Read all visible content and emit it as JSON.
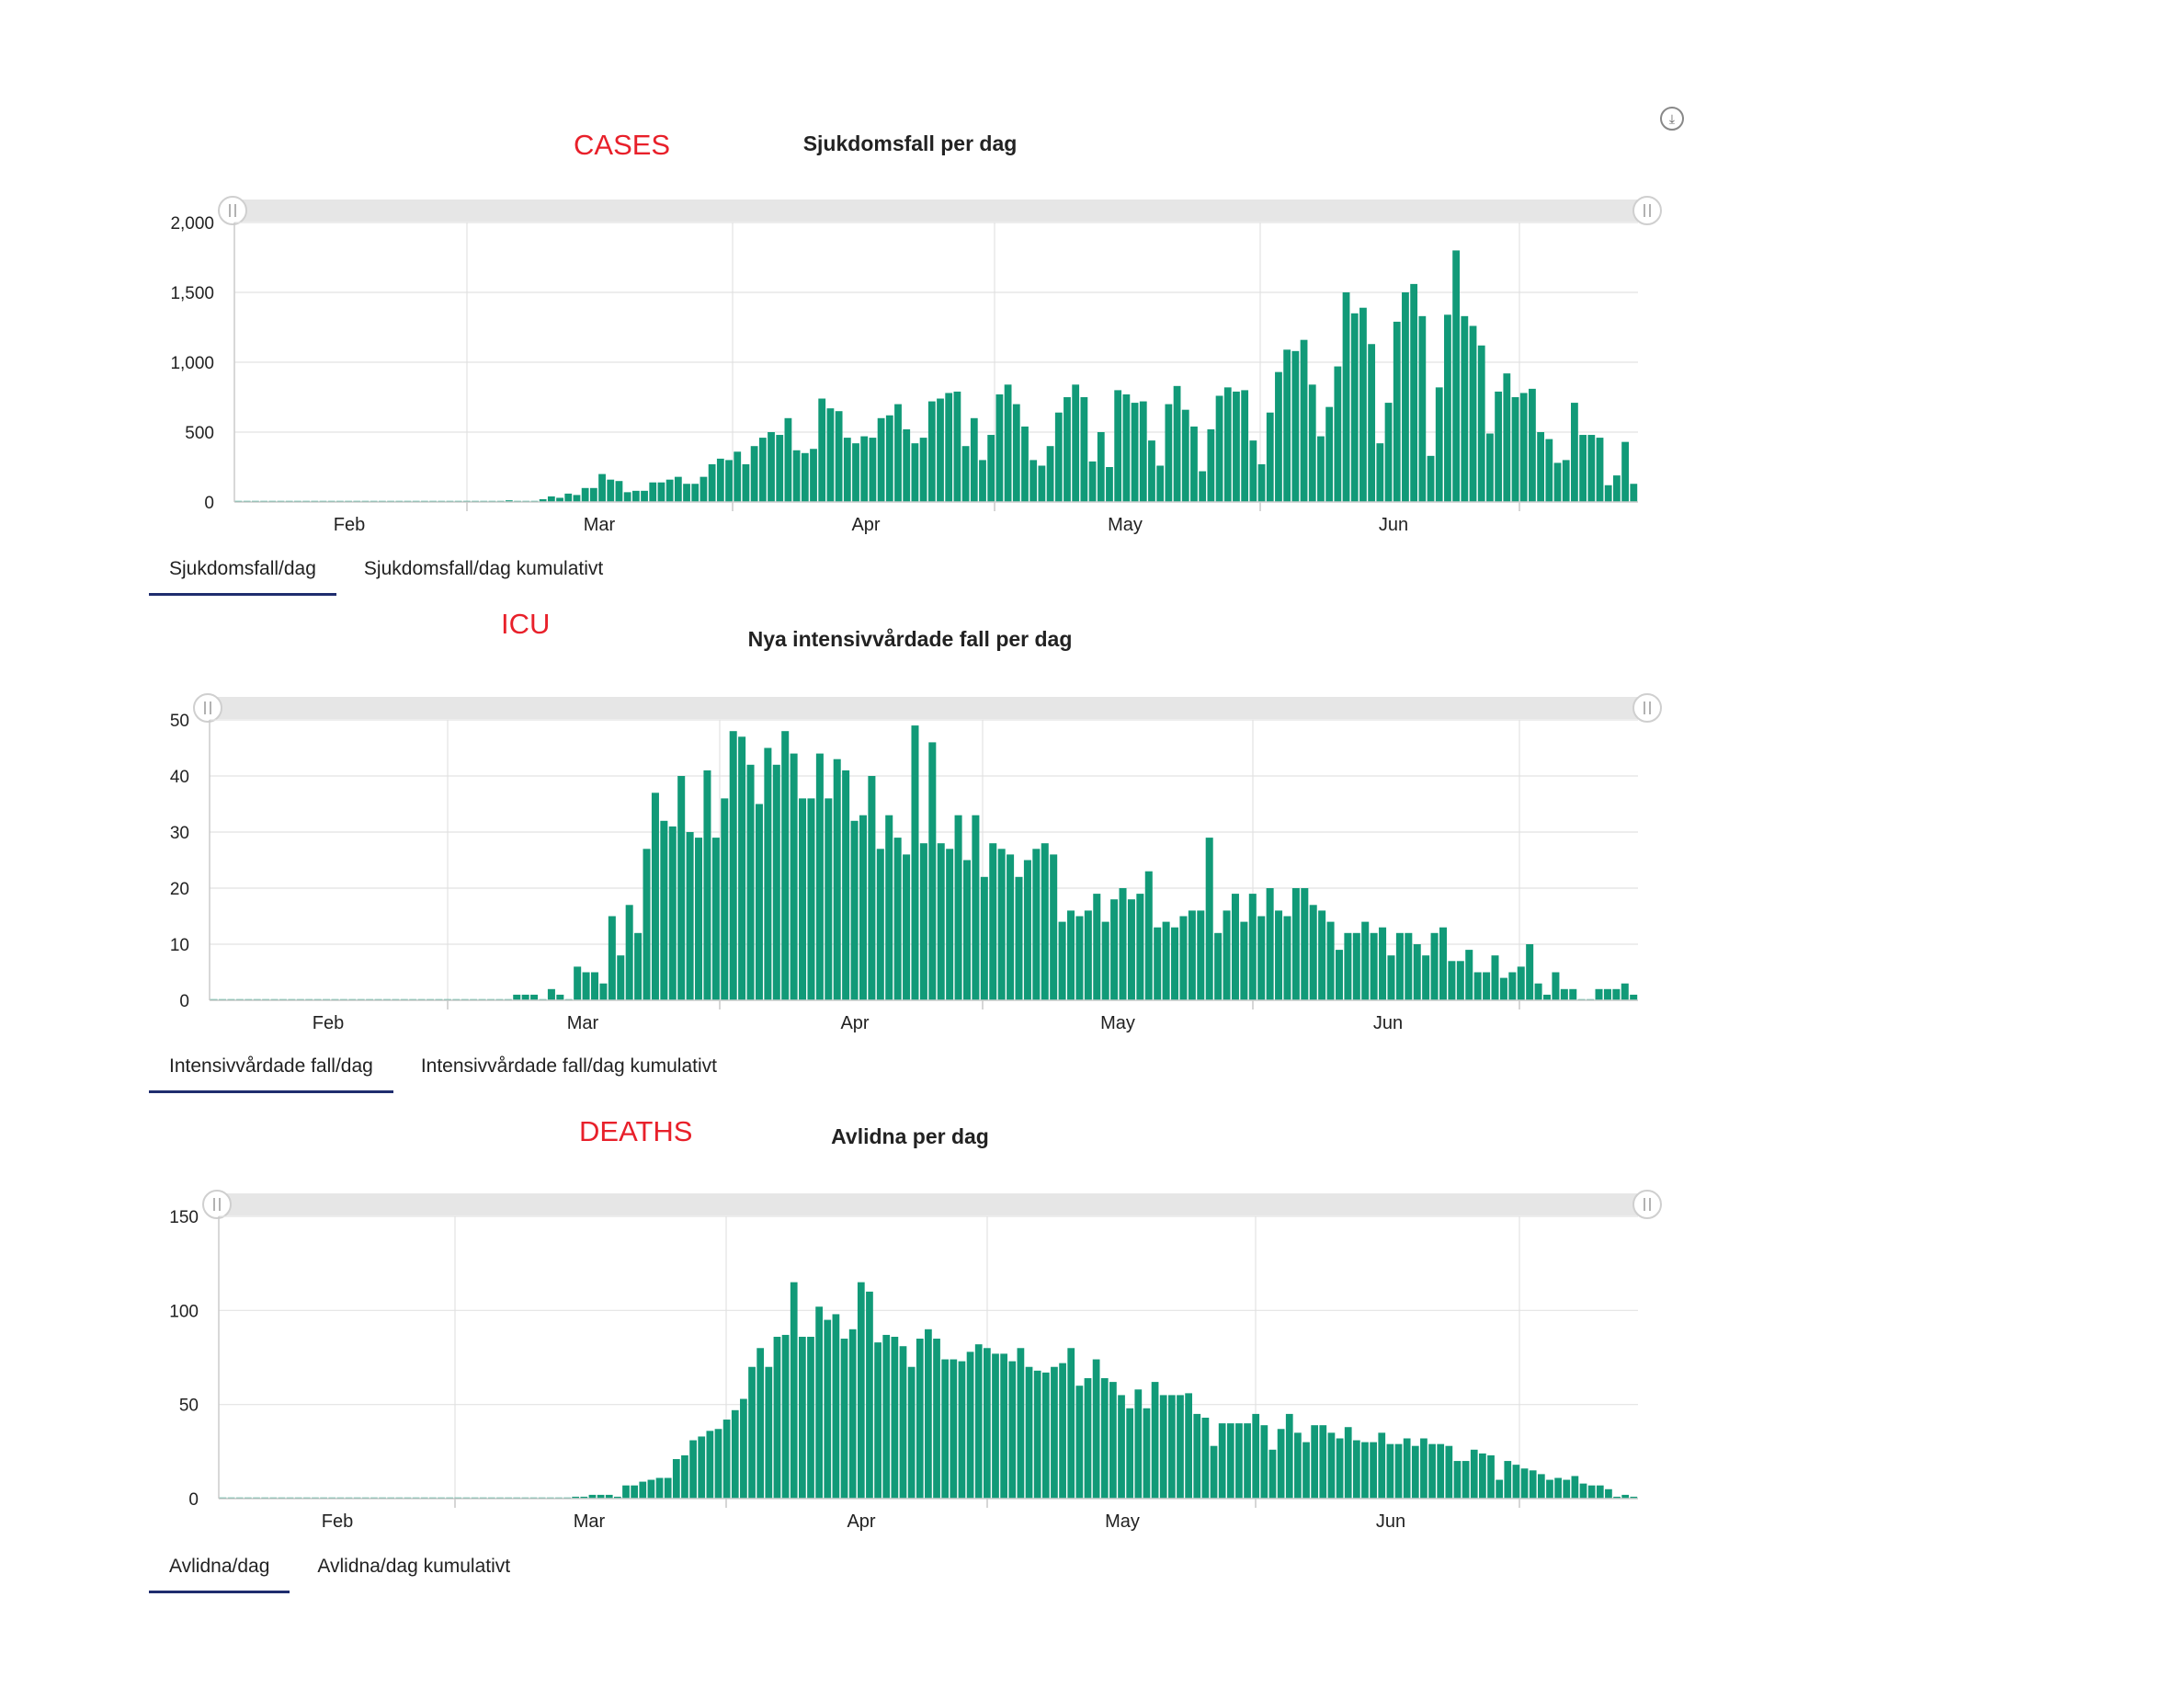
{
  "corner_icon": "export-icon",
  "colors": {
    "bar": "#119a78",
    "grid": "#e2e2e2",
    "scrollbar": "#e6e6e6",
    "tab_underline": "#1f2d6e",
    "annotation": "#e8202a"
  },
  "panels": [
    {
      "annotation": "CASES",
      "tabs": [
        {
          "label": "Sjukdomsfall/dag",
          "active": true
        },
        {
          "label": "Sjukdomsfall/dag kumulativt",
          "active": false
        }
      ]
    },
    {
      "annotation": "ICU",
      "tabs": [
        {
          "label": "Intensivvårdade fall/dag",
          "active": true
        },
        {
          "label": "Intensivvårdade fall/dag kumulativt",
          "active": false
        }
      ]
    },
    {
      "annotation": "DEATHS",
      "tabs": [
        {
          "label": "Avlidna/dag",
          "active": true
        },
        {
          "label": "Avlidna/dag kumulativt",
          "active": false
        }
      ]
    }
  ],
  "chart_data": [
    {
      "type": "bar",
      "title": "Sjukdomsfall per dag",
      "x_tick_labels": [
        "Feb",
        "Mar",
        "Apr",
        "May",
        "Jun"
      ],
      "y_tick_labels": [
        "0",
        "500",
        "1,000",
        "1,500",
        "2,000"
      ],
      "ylim": [
        0,
        2000
      ],
      "grid": true,
      "values": [
        1,
        0,
        0,
        0,
        0,
        0,
        1,
        0,
        0,
        0,
        0,
        0,
        0,
        0,
        0,
        0,
        0,
        0,
        0,
        0,
        0,
        0,
        0,
        0,
        0,
        0,
        0,
        0,
        0,
        0,
        1,
        0,
        12,
        2,
        3,
        5,
        20,
        40,
        30,
        60,
        50,
        100,
        100,
        200,
        160,
        150,
        70,
        80,
        80,
        140,
        140,
        160,
        180,
        130,
        130,
        180,
        270,
        310,
        300,
        360,
        270,
        400,
        460,
        500,
        480,
        600,
        370,
        350,
        380,
        740,
        670,
        650,
        460,
        420,
        470,
        460,
        600,
        620,
        700,
        520,
        420,
        460,
        720,
        740,
        780,
        790,
        400,
        600,
        300,
        480,
        770,
        840,
        700,
        540,
        300,
        260,
        400,
        640,
        750,
        840,
        750,
        290,
        500,
        250,
        800,
        770,
        710,
        720,
        440,
        260,
        700,
        830,
        660,
        540,
        220,
        520,
        760,
        820,
        790,
        800,
        440,
        270,
        640,
        930,
        1090,
        1080,
        1160,
        840,
        470,
        680,
        970,
        1500,
        1350,
        1390,
        1130,
        420,
        710,
        1290,
        1500,
        1560,
        1330,
        330,
        820,
        1340,
        1800,
        1330,
        1260,
        1120,
        490,
        790,
        920,
        750,
        780,
        810,
        500,
        450,
        280,
        300,
        710,
        480,
        480,
        460,
        120,
        190,
        430,
        130
      ]
    },
    {
      "type": "bar",
      "title": "Nya intensivvårdade fall per dag",
      "x_tick_labels": [
        "Feb",
        "Mar",
        "Apr",
        "May",
        "Jun"
      ],
      "y_tick_labels": [
        "0",
        "10",
        "20",
        "30",
        "40",
        "50"
      ],
      "ylim": [
        0,
        50
      ],
      "grid": true,
      "values": [
        0,
        0,
        0,
        0,
        0,
        0,
        0,
        0,
        0,
        0,
        0,
        0,
        0,
        0,
        0,
        0,
        0,
        0,
        0,
        0,
        0,
        0,
        0,
        0,
        0,
        0,
        0,
        0,
        0,
        0,
        0,
        0,
        0,
        0,
        0,
        1,
        1,
        1,
        0,
        2,
        1,
        0,
        6,
        5,
        5,
        3,
        15,
        8,
        17,
        12,
        27,
        37,
        32,
        31,
        40,
        30,
        29,
        41,
        29,
        36,
        48,
        47,
        42,
        35,
        45,
        42,
        48,
        44,
        36,
        36,
        44,
        36,
        43,
        41,
        32,
        33,
        40,
        27,
        33,
        29,
        26,
        49,
        28,
        46,
        28,
        27,
        33,
        25,
        33,
        22,
        28,
        27,
        26,
        22,
        25,
        27,
        28,
        26,
        14,
        16,
        15,
        16,
        19,
        14,
        18,
        20,
        18,
        19,
        23,
        13,
        14,
        13,
        15,
        16,
        16,
        29,
        12,
        16,
        19,
        14,
        19,
        15,
        20,
        16,
        15,
        20,
        20,
        17,
        16,
        14,
        9,
        12,
        12,
        14,
        12,
        13,
        8,
        12,
        12,
        10,
        8,
        12,
        13,
        7,
        7,
        9,
        5,
        5,
        8,
        4,
        5,
        6,
        10,
        3,
        1,
        5,
        2,
        2,
        0,
        0,
        2,
        2,
        2,
        3,
        1
      ]
    },
    {
      "type": "bar",
      "title": "Avlidna per dag",
      "x_tick_labels": [
        "Feb",
        "Mar",
        "Apr",
        "May",
        "Jun"
      ],
      "y_tick_labels": [
        "0",
        "50",
        "100",
        "150"
      ],
      "ylim": [
        0,
        150
      ],
      "grid": true,
      "values": [
        0,
        0,
        0,
        0,
        0,
        0,
        0,
        0,
        0,
        0,
        0,
        0,
        0,
        0,
        0,
        0,
        0,
        0,
        0,
        0,
        0,
        0,
        0,
        0,
        0,
        0,
        0,
        0,
        0,
        0,
        0,
        0,
        0,
        0,
        0,
        0,
        0,
        0,
        0,
        0,
        0,
        0,
        1,
        1,
        2,
        2,
        2,
        1,
        7,
        7,
        9,
        10,
        11,
        11,
        21,
        23,
        31,
        33,
        36,
        37,
        42,
        47,
        53,
        70,
        80,
        70,
        86,
        87,
        115,
        86,
        86,
        102,
        95,
        98,
        85,
        90,
        115,
        110,
        83,
        87,
        86,
        81,
        70,
        85,
        90,
        85,
        74,
        74,
        73,
        78,
        82,
        80,
        77,
        77,
        73,
        80,
        70,
        68,
        67,
        70,
        72,
        80,
        60,
        64,
        74,
        64,
        62,
        55,
        48,
        58,
        48,
        62,
        55,
        55,
        55,
        56,
        45,
        43,
        28,
        40,
        40,
        40,
        40,
        45,
        39,
        26,
        37,
        45,
        35,
        30,
        39,
        39,
        35,
        32,
        38,
        31,
        30,
        30,
        35,
        29,
        29,
        32,
        28,
        32,
        29,
        29,
        28,
        20,
        20,
        26,
        24,
        23,
        10,
        20,
        18,
        16,
        15,
        13,
        10,
        11,
        10,
        12,
        8,
        7,
        7,
        5,
        1,
        2,
        1
      ]
    }
  ]
}
